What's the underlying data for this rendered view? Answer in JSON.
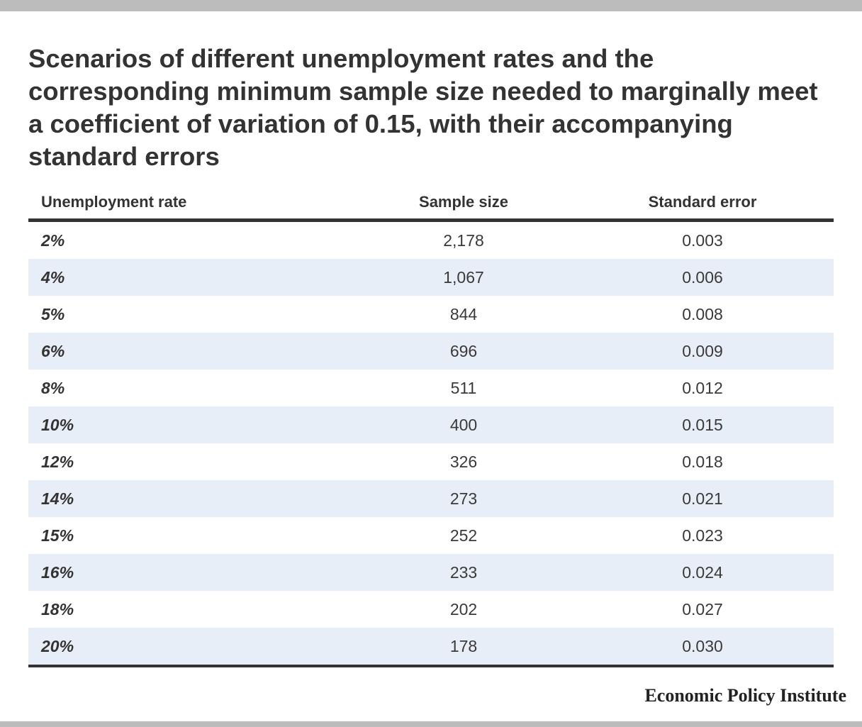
{
  "title": "Scenarios of different unemployment rates and the corresponding minimum sample size needed to marginally meet a coefficient of variation of 0.15, with their accompanying standard errors",
  "table": {
    "headers": {
      "rate": "Unemployment rate",
      "sample": "Sample size",
      "se": "Standard error"
    },
    "rows": [
      {
        "rate": "2%",
        "sample": "2,178",
        "se": "0.003"
      },
      {
        "rate": "4%",
        "sample": "1,067",
        "se": "0.006"
      },
      {
        "rate": "5%",
        "sample": "844",
        "se": "0.008"
      },
      {
        "rate": "6%",
        "sample": "696",
        "se": "0.009"
      },
      {
        "rate": "8%",
        "sample": "511",
        "se": "0.012"
      },
      {
        "rate": "10%",
        "sample": "400",
        "se": "0.015"
      },
      {
        "rate": "12%",
        "sample": "326",
        "se": "0.018"
      },
      {
        "rate": "14%",
        "sample": "273",
        "se": "0.021"
      },
      {
        "rate": "15%",
        "sample": "252",
        "se": "0.023"
      },
      {
        "rate": "16%",
        "sample": "233",
        "se": "0.024"
      },
      {
        "rate": "18%",
        "sample": "202",
        "se": "0.027"
      },
      {
        "rate": "20%",
        "sample": "178",
        "se": "0.030"
      }
    ]
  },
  "source": "Economic Policy Institute",
  "colors": {
    "band": "#e8eef7",
    "rule": "#333333",
    "frame": "#bcbcbc"
  }
}
